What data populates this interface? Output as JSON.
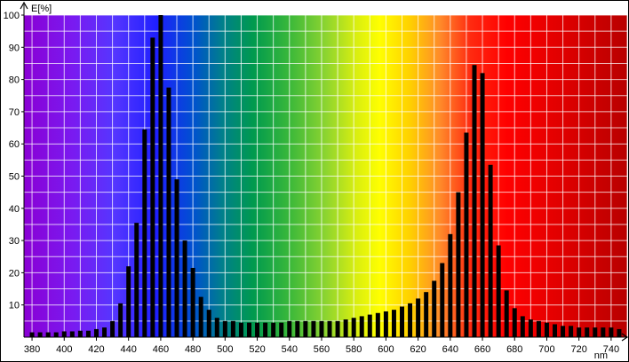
{
  "chart_data": {
    "type": "bar",
    "ylabel": "E[%]",
    "xlabel": "nm",
    "xlim": [
      375,
      750
    ],
    "ylim": [
      0,
      100
    ],
    "x_ticks": [
      380,
      400,
      420,
      440,
      460,
      480,
      500,
      520,
      540,
      560,
      580,
      600,
      620,
      640,
      660,
      680,
      700,
      720,
      740
    ],
    "y_ticks": [
      10,
      20,
      30,
      40,
      50,
      60,
      70,
      80,
      90,
      100
    ],
    "grid": true,
    "background": "visible-spectrum-gradient",
    "bar_color": "#000000",
    "gridline_color": "#ffffff",
    "x": [
      380,
      385,
      390,
      395,
      400,
      405,
      410,
      415,
      420,
      425,
      430,
      435,
      440,
      445,
      450,
      455,
      460,
      465,
      470,
      475,
      480,
      485,
      490,
      495,
      500,
      505,
      510,
      515,
      520,
      525,
      530,
      535,
      540,
      545,
      550,
      555,
      560,
      565,
      570,
      575,
      580,
      585,
      590,
      595,
      600,
      605,
      610,
      615,
      620,
      625,
      630,
      635,
      640,
      645,
      650,
      655,
      660,
      665,
      670,
      675,
      680,
      685,
      690,
      695,
      700,
      705,
      710,
      715,
      720,
      725,
      730,
      735,
      740,
      745
    ],
    "values": [
      1.5,
      1.5,
      1.5,
      1.5,
      1.8,
      1.8,
      2,
      2,
      2.5,
      3,
      5,
      10.5,
      22,
      35.5,
      64.5,
      93,
      100,
      77.5,
      49,
      30,
      21.5,
      12.5,
      8.5,
      6,
      5,
      5,
      4.5,
      4.5,
      4.5,
      4.5,
      4.5,
      4.5,
      5,
      5,
      5,
      5,
      5,
      5,
      5,
      5.5,
      6,
      6.5,
      7,
      7.5,
      8,
      8.5,
      9.5,
      10.5,
      12,
      14,
      17.5,
      23,
      32,
      45,
      63.5,
      84.5,
      82,
      53.5,
      28.5,
      14.5,
      9,
      6.5,
      5.5,
      5,
      4.5,
      4,
      3.5,
      3.5,
      3,
      3,
      3,
      3,
      3,
      2.5
    ]
  }
}
